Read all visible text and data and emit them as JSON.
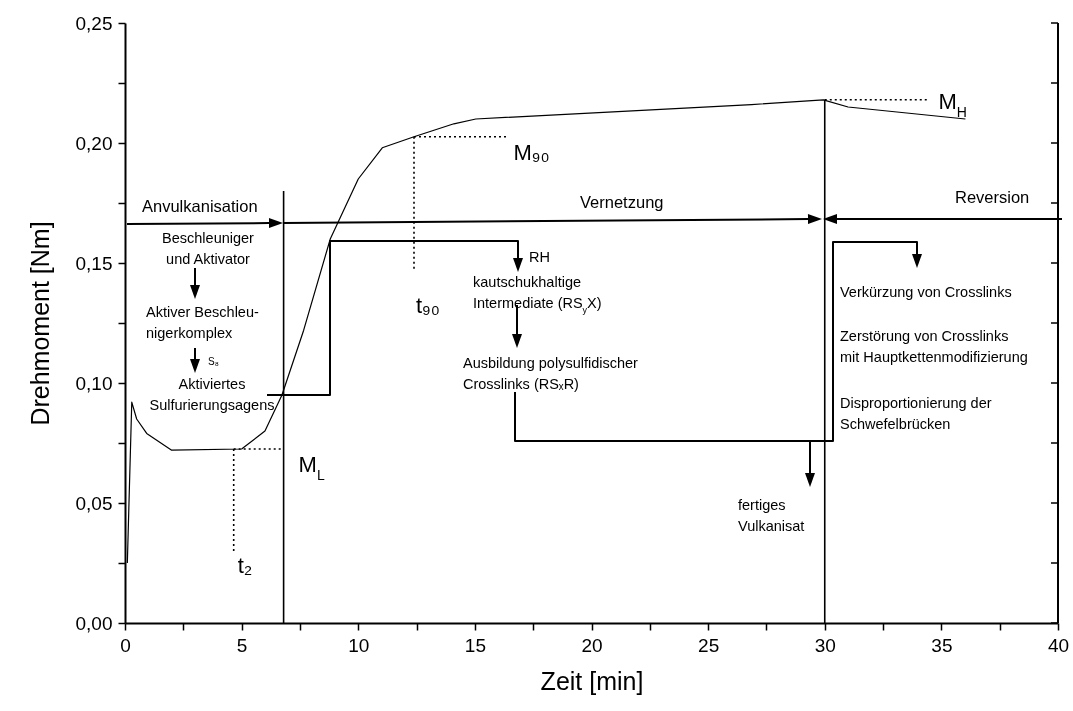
{
  "chart_data": {
    "type": "line",
    "xlabel": "Zeit [min]",
    "ylabel": "Drehmoment [Nm]",
    "xlim": [
      0,
      40
    ],
    "ylim": [
      0,
      0.25
    ],
    "xticks": [
      0,
      {
        "value": 2.5,
        "label": null
      },
      5,
      {
        "value": 7.5,
        "label": null
      },
      10,
      {
        "value": 12.5,
        "label": null
      },
      15,
      {
        "value": 17.5,
        "label": null
      },
      20,
      {
        "value": 22.5,
        "label": null
      },
      25,
      {
        "value": 27.5,
        "label": null
      },
      30,
      {
        "value": 32.5,
        "label": null
      },
      35,
      {
        "value": 37.5,
        "label": null
      },
      40
    ],
    "yticks": [
      {
        "value": 0,
        "label": "0,00"
      },
      {
        "value": 0.025,
        "label": null
      },
      {
        "value": 0.05,
        "label": "0,05"
      },
      {
        "value": 0.075,
        "label": null
      },
      {
        "value": 0.1,
        "label": "0,10"
      },
      {
        "value": 0.125,
        "label": null
      },
      {
        "value": 0.15,
        "label": "0,15"
      },
      {
        "value": 0.175,
        "label": null
      },
      {
        "value": 0.2,
        "label": "0,20"
      },
      {
        "value": 0.225,
        "label": null
      },
      {
        "value": 0.25,
        "label": "0,25"
      }
    ],
    "grid": false,
    "line_style": "solid",
    "series": [
      {
        "color": "#000000",
        "x": [
          0.1,
          0.29,
          0.5,
          0.93,
          2.0,
          5.0,
          6.0,
          6.73,
          7.66,
          8.8,
          10.0,
          11.03,
          12.39,
          14.1,
          15.04,
          26.86,
          29.94,
          31.0,
          36.03
        ],
        "values": [
          0.025,
          0.092,
          0.085,
          0.079,
          0.072,
          0.0725,
          0.08,
          0.095,
          0.122,
          0.16,
          0.185,
          0.198,
          0.2026,
          0.208,
          0.21,
          0.216,
          0.218,
          0.215,
          0.21
        ]
      },
      {
        "color": "#000000",
        "x": [
          6.8,
          6.8
        ],
        "values": [
          0,
          0.18
        ]
      },
      {
        "color": "#000000",
        "x": [
          30,
          30
        ],
        "values": [
          0,
          0.218
        ]
      },
      {
        "color": "#000000",
        "line_style": "dotted",
        "x": [
          4.66,
          6.8
        ],
        "values": [
          0.0725,
          0.0725
        ]
      },
      {
        "color": "#000000",
        "line_style": "dotted",
        "x": [
          4.66,
          4.66
        ],
        "values": [
          0.0725,
          0.029
        ]
      },
      {
        "color": "#000000",
        "line_style": "dotted",
        "x": [
          12.39,
          12.39
        ],
        "values": [
          0.2026,
          0.147
        ]
      },
      {
        "color": "#000000",
        "line_style": "dotted",
        "x": [
          12.39,
          16.4
        ],
        "values": [
          0.2026,
          0.2026
        ]
      },
      {
        "color": "#000000",
        "line_style": "dotted",
        "x": [
          30,
          34.45
        ],
        "values": [
          0.218,
          0.218
        ]
      }
    ],
    "annotations": [
      "Anvulkanisation",
      "Vernetzung",
      "Reversion",
      "Beschleuniger\nund Aktivator",
      "Aktiver Beschleu-\nnigerkomplex",
      "S₈",
      "Aktiviertes\nSulfurierungsagens",
      "RH",
      "kautschukhaltige\nIntermediate (RS$_{y}$X)",
      "Ausbildung polysulfidischer\nCrosslinks (RSₓR)",
      "fertiges\nVulkanisat",
      "Verkürzung von Crosslinks",
      "Zerstörung von Crosslinks\nmit Hauptkettenmodifizierung",
      "Disproportionierung der\nSchwefelbrücken",
      {
        "text": "M$_{L}$",
        "x": 6.8,
        "y": 0.0725
      },
      {
        "text": "t₂",
        "x": 4.66,
        "y": 0.029
      },
      {
        "text": "M₉₀",
        "x": 16.4,
        "y": 0.2026
      },
      {
        "text": "t₉₀",
        "x": 12.39,
        "y": 0.147
      },
      {
        "text": "M$_{H}$",
        "x": 34.45,
        "y": 0.218
      }
    ]
  }
}
